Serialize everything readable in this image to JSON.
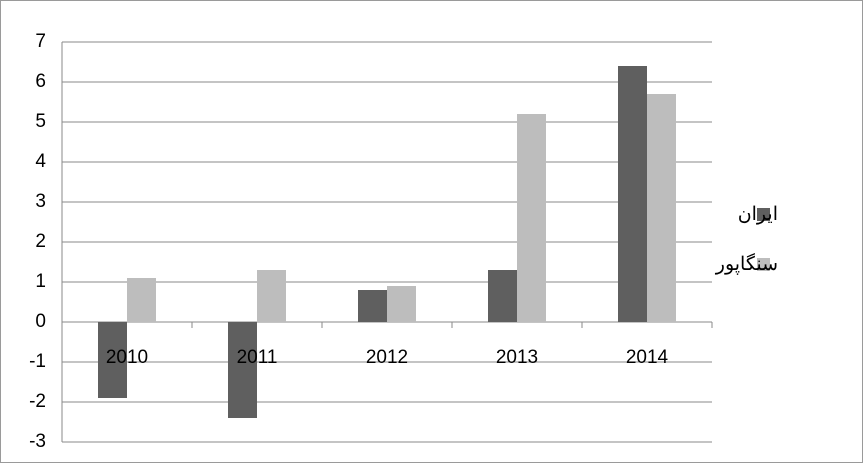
{
  "chart_data": {
    "type": "bar",
    "categories": [
      "2010",
      "2011",
      "2012",
      "2013",
      "2014"
    ],
    "series": [
      {
        "name": "ایران",
        "color": "#5f5f5f",
        "values": [
          -1.9,
          -2.4,
          0.8,
          1.3,
          6.4
        ]
      },
      {
        "name": "سنگاپور",
        "color": "#bdbdbd",
        "values": [
          1.1,
          1.3,
          0.9,
          5.2,
          5.7
        ]
      }
    ],
    "ylim": [
      -3,
      7
    ],
    "yticks": [
      -3,
      -2,
      -1,
      0,
      1,
      2,
      3,
      4,
      5,
      6,
      7
    ],
    "grid": true,
    "legend": "right"
  }
}
